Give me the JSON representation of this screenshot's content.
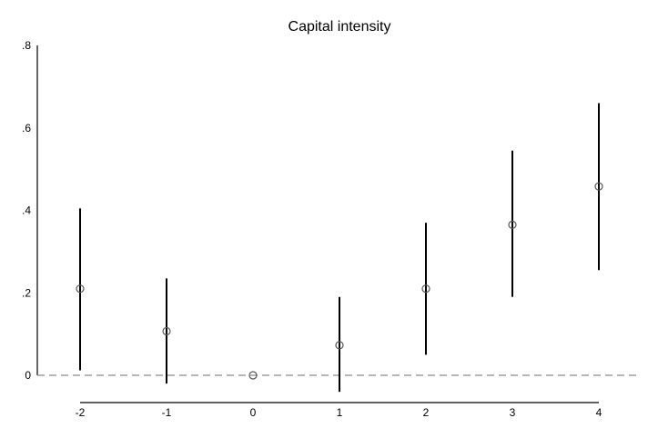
{
  "chart_data": {
    "type": "scatter",
    "title": "Capital intensity",
    "xlabel": "",
    "ylabel": "",
    "x": [
      -2,
      -1,
      0,
      1,
      2,
      3,
      4
    ],
    "x_tick_labels": [
      "-2",
      "-1",
      "0",
      "1",
      "2",
      "3",
      "4"
    ],
    "y_tick_values": [
      0,
      0.2,
      0.4,
      0.6,
      0.8
    ],
    "y_tick_labels": [
      "0",
      ".2",
      ".4",
      ".6",
      ".8"
    ],
    "ylim": [
      -0.05,
      0.8
    ],
    "xlim": [
      -2.5,
      4.5
    ],
    "grid": false,
    "reference_line": {
      "y": 0,
      "style": "dashed",
      "color": "#8a8a8a"
    },
    "series": [
      {
        "estimate": [
          0.21,
          0.107,
          0.0,
          0.073,
          0.21,
          0.365,
          0.458
        ],
        "ci_lower": [
          0.012,
          -0.02,
          0.0,
          -0.04,
          0.05,
          0.19,
          0.255
        ],
        "ci_upper": [
          0.405,
          0.235,
          0.0,
          0.19,
          0.37,
          0.545,
          0.66
        ],
        "marker": "hollow-circle",
        "color": "#000000"
      }
    ]
  }
}
